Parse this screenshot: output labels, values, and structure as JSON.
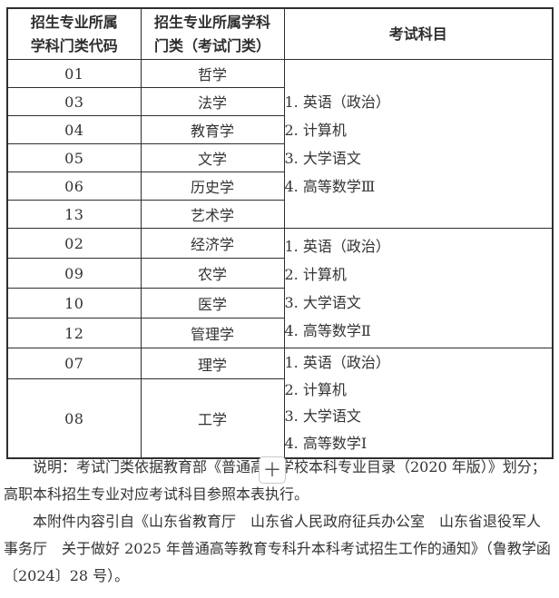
{
  "table": {
    "header": {
      "col1": [
        "招生专业所属",
        "学科门类代码"
      ],
      "col2": [
        "招生专业所属学科",
        "门类（考试门类）"
      ],
      "col3": "考试科目"
    },
    "groups": [
      {
        "rows": [
          {
            "code": "01",
            "category": "哲学"
          },
          {
            "code": "03",
            "category": "法学"
          },
          {
            "code": "04",
            "category": "教育学"
          },
          {
            "code": "05",
            "category": "文学"
          },
          {
            "code": "06",
            "category": "历史学"
          },
          {
            "code": "13",
            "category": "艺术学"
          }
        ],
        "subjects": [
          "1. 英语（政治）",
          "2. 计算机",
          "3. 大学语文",
          "4. 高等数学Ⅲ"
        ]
      },
      {
        "rows": [
          {
            "code": "02",
            "category": "经济学"
          },
          {
            "code": "09",
            "category": "农学"
          },
          {
            "code": "10",
            "category": "医学"
          },
          {
            "code": "12",
            "category": "管理学"
          }
        ],
        "subjects": [
          "1. 英语（政治）",
          "2. 计算机",
          "3. 大学语文",
          "4. 高等数学Ⅱ"
        ]
      },
      {
        "rows": [
          {
            "code": "07",
            "category": "理学"
          },
          {
            "code": "08",
            "category": "工学"
          }
        ],
        "subjects": [
          "1. 英语（政治）",
          "2. 计算机",
          "3. 大学语文",
          "4. 高等数学Ⅰ"
        ]
      }
    ]
  },
  "notes": [
    "说明：考试门类依据教育部《普通高等学校本科专业目录（2020 年版）》划分；高职本科招生专业对应考试科目参照本表执行。",
    "本附件内容引自《山东省教育厅　山东省人民政府征兵办公室　山东省退役军人事务厅　关于做好 2025 年普通高等教育专科升本科考试招生工作的通知》（鲁教学函〔2024〕28 号）。"
  ],
  "overlay": {
    "zoom_button_label": "＋"
  },
  "colors": {
    "page_background": "#ffffff",
    "table_border": "#2e2e2e",
    "text": "#333333",
    "zoom_button_border": "#c8c8c8"
  }
}
